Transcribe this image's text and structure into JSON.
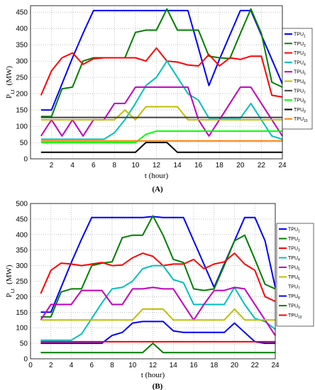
{
  "chart_data": [
    {
      "type": "line",
      "panel_label": "(A)",
      "xlabel": "t  (hour)",
      "ylabel": "P_i,t (MW)",
      "ylabel_main": "P",
      "ylabel_sub": "i,t",
      "ylabel_unit": "(MW)",
      "xlim": [
        0,
        24
      ],
      "ylim": [
        0,
        470
      ],
      "xticks": [
        "2",
        "4",
        "6",
        "8",
        "10",
        "12",
        "14",
        "16",
        "18",
        "20",
        "22",
        "24"
      ],
      "yticks": [
        "0",
        "50",
        "100",
        "150",
        "200",
        "250",
        "300",
        "350",
        "400",
        "450"
      ],
      "grid": true,
      "legend_position": "right",
      "x": [
        1,
        2,
        3,
        4,
        5,
        6,
        7,
        8,
        9,
        10,
        11,
        12,
        13,
        14,
        15,
        16,
        17,
        18,
        19,
        20,
        21,
        22,
        23,
        24
      ],
      "series": [
        {
          "name": "TPU1",
          "base": "TPU",
          "sub": "1",
          "color": "#0000ff",
          "values": [
            150,
            150,
            230,
            310,
            385,
            455,
            455,
            455,
            455,
            455,
            455,
            455,
            455,
            455,
            455,
            340,
            225,
            305,
            380,
            455,
            455,
            380,
            305,
            230
          ]
        },
        {
          "name": "TPU2",
          "base": "TPU",
          "sub": "2",
          "color": "#007f00",
          "values": [
            130,
            130,
            215,
            220,
            300,
            310,
            310,
            310,
            310,
            388,
            395,
            395,
            460,
            395,
            395,
            395,
            315,
            310,
            308,
            385,
            460,
            385,
            235,
            220
          ]
        },
        {
          "name": "TPU3",
          "base": "TPU",
          "sub": "3",
          "color": "#ff0000",
          "values": [
            195,
            270,
            310,
            325,
            290,
            307,
            310,
            310,
            310,
            310,
            300,
            340,
            300,
            297,
            288,
            285,
            320,
            285,
            310,
            305,
            315,
            315,
            195,
            190
          ]
        },
        {
          "name": "TPU4",
          "base": "TPU",
          "sub": "4",
          "color": "#00bfbf",
          "values": [
            60,
            60,
            60,
            60,
            60,
            60,
            60,
            80,
            120,
            170,
            225,
            250,
            300,
            250,
            200,
            180,
            125,
            125,
            125,
            125,
            170,
            120,
            70,
            60
          ]
        },
        {
          "name": "TPU5",
          "base": "TPU",
          "sub": "5",
          "color": "#bf00bf",
          "values": [
            70,
            120,
            70,
            120,
            70,
            120,
            120,
            170,
            170,
            220,
            220,
            220,
            220,
            220,
            220,
            120,
            70,
            120,
            170,
            220,
            220,
            170,
            120,
            70
          ]
        },
        {
          "name": "TPU6",
          "base": "TPU",
          "sub": "6",
          "color": "#bfbf00",
          "values": [
            120,
            120,
            120,
            120,
            120,
            120,
            120,
            120,
            150,
            120,
            160,
            160,
            160,
            160,
            120,
            120,
            120,
            120,
            120,
            120,
            120,
            120,
            120,
            120
          ]
        },
        {
          "name": "TPU7",
          "base": "TPU",
          "sub": "7",
          "color": "#404040",
          "values": [
            127,
            127,
            127,
            127,
            127,
            127,
            127,
            127,
            127,
            127,
            127,
            127,
            127,
            127,
            127,
            127,
            127,
            127,
            127,
            127,
            127,
            127,
            127,
            127
          ]
        },
        {
          "name": "TPU8",
          "base": "TPU",
          "sub": "8",
          "color": "#00ff00",
          "values": [
            50,
            50,
            50,
            50,
            50,
            50,
            50,
            50,
            50,
            50,
            75,
            85,
            85,
            85,
            85,
            85,
            85,
            85,
            85,
            85,
            85,
            85,
            85,
            85
          ]
        },
        {
          "name": "TPU9",
          "base": "TPU",
          "sub": "9",
          "color": "#000000",
          "values": [
            20,
            20,
            20,
            20,
            20,
            20,
            20,
            20,
            20,
            20,
            50,
            50,
            50,
            20,
            20,
            20,
            20,
            20,
            20,
            20,
            20,
            20,
            20,
            20
          ]
        },
        {
          "name": "TPU10",
          "base": "TPU",
          "sub": "10",
          "color": "#ff7f00",
          "values": [
            55,
            55,
            55,
            55,
            55,
            55,
            55,
            55,
            55,
            55,
            55,
            55,
            55,
            55,
            55,
            55,
            55,
            55,
            55,
            55,
            55,
            55,
            55,
            55
          ]
        }
      ]
    },
    {
      "type": "line",
      "panel_label": "(B)",
      "xlabel": "t   (hour)",
      "ylabel": "P_i,t (MW)",
      "ylabel_main": "P",
      "ylabel_sub": "i,t",
      "ylabel_unit": "(MW)",
      "xlim": [
        0,
        24
      ],
      "ylim": [
        0,
        500
      ],
      "xticks": [
        "0",
        "2",
        "4",
        "6",
        "8",
        "10",
        "12",
        "14",
        "16",
        "18",
        "20",
        "22",
        "24"
      ],
      "yticks": [
        "0",
        "50",
        "100",
        "150",
        "200",
        "250",
        "300",
        "350",
        "400",
        "450",
        "500"
      ],
      "grid": true,
      "legend_position": "right",
      "x": [
        1,
        2,
        3,
        4,
        5,
        6,
        7,
        8,
        9,
        10,
        11,
        12,
        13,
        14,
        15,
        16,
        17,
        18,
        19,
        20,
        21,
        22,
        23,
        24
      ],
      "series": [
        {
          "name": "TPU1",
          "base": "TPU",
          "sub": "1",
          "color": "#0000ff",
          "values": [
            150,
            150,
            230,
            310,
            385,
            455,
            455,
            455,
            455,
            455,
            455,
            458,
            455,
            455,
            455,
            380,
            305,
            230,
            305,
            380,
            455,
            455,
            380,
            230
          ]
        },
        {
          "name": "TPU2",
          "base": "TPU",
          "sub": "2",
          "color": "#007f00",
          "values": [
            135,
            135,
            215,
            225,
            225,
            300,
            308,
            312,
            390,
            398,
            398,
            460,
            398,
            320,
            310,
            225,
            220,
            225,
            300,
            380,
            398,
            320,
            240,
            225
          ]
        },
        {
          "name": "TPU3",
          "base": "TPU",
          "sub": "3",
          "color": "#ff0000",
          "values": [
            210,
            285,
            308,
            305,
            300,
            305,
            310,
            300,
            302,
            325,
            340,
            330,
            300,
            305,
            305,
            320,
            290,
            305,
            312,
            340,
            305,
            285,
            200,
            185
          ]
        },
        {
          "name": "TPU4",
          "base": "TPU",
          "sub": "4",
          "color": "#00bfbf",
          "values": [
            60,
            60,
            60,
            60,
            80,
            130,
            180,
            225,
            230,
            250,
            290,
            300,
            300,
            255,
            245,
            175,
            175,
            175,
            175,
            230,
            175,
            130,
            120,
            95
          ]
        },
        {
          "name": "TPU5",
          "base": "TPU",
          "sub": "5",
          "color": "#bf00bf",
          "values": [
            125,
            175,
            175,
            175,
            220,
            220,
            220,
            175,
            175,
            225,
            225,
            230,
            225,
            225,
            175,
            125,
            175,
            220,
            220,
            230,
            225,
            175,
            125,
            75
          ]
        },
        {
          "name": "TPU6",
          "base": "TPU",
          "sub": "6",
          "color": "#bfbf00",
          "values": [
            125,
            125,
            125,
            125,
            125,
            125,
            125,
            125,
            125,
            125,
            160,
            160,
            160,
            125,
            125,
            125,
            125,
            125,
            125,
            160,
            125,
            125,
            125,
            125
          ]
        },
        {
          "name": "TPU7",
          "base": "TPU",
          "sub": "7",
          "color": "#ffffff",
          "values": [
            0,
            0,
            0,
            0,
            0,
            0,
            0,
            0,
            0,
            0,
            0,
            0,
            0,
            0,
            0,
            0,
            0,
            0,
            0,
            0,
            0,
            0,
            0,
            0
          ]
        },
        {
          "name": "TPU8",
          "base": "TPU",
          "sub": "8",
          "color": "#0000ff",
          "values": [
            50,
            50,
            50,
            50,
            50,
            50,
            50,
            75,
            85,
            115,
            120,
            120,
            120,
            90,
            85,
            85,
            85,
            85,
            85,
            115,
            85,
            55,
            50,
            50
          ]
        },
        {
          "name": "TPU9",
          "base": "TPU",
          "sub": "9",
          "color": "#007f00",
          "values": [
            20,
            20,
            20,
            20,
            20,
            20,
            20,
            20,
            20,
            20,
            20,
            50,
            20,
            20,
            20,
            20,
            20,
            20,
            20,
            20,
            20,
            20,
            20,
            20
          ]
        },
        {
          "name": "TPU10",
          "base": "TPU",
          "sub": "10",
          "color": "#ff0000",
          "values": [
            55,
            55,
            55,
            55,
            55,
            55,
            55,
            55,
            55,
            55,
            55,
            55,
            55,
            55,
            55,
            55,
            55,
            55,
            55,
            55,
            55,
            55,
            55,
            55
          ]
        }
      ]
    }
  ]
}
